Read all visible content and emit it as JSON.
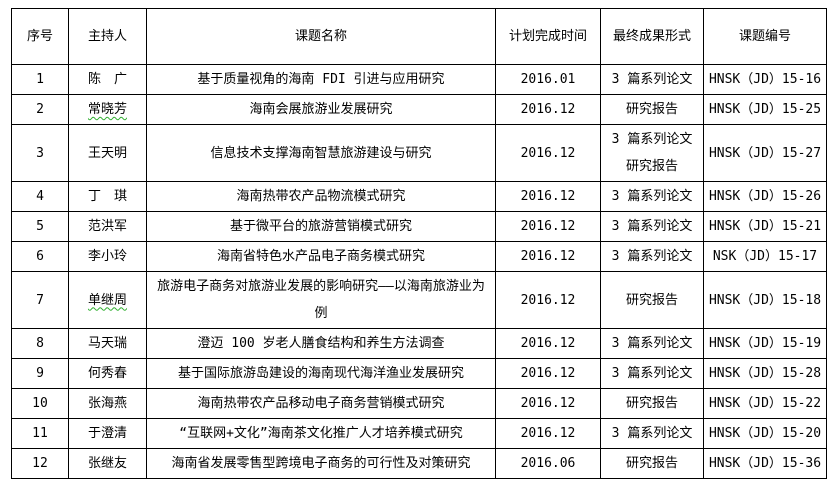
{
  "colors": {
    "table_border": "#000000",
    "text": "#000000",
    "spellcheck_underline": "#2fae2f",
    "background": "#ffffff"
  },
  "table": {
    "headers": [
      "序号",
      "主持人",
      "课题名称",
      "计划完成时间",
      "最终成果形式",
      "课题编号"
    ],
    "rows": [
      {
        "no": "1",
        "host": "陈　广",
        "title": "基于质量视角的海南 FDI 引进与应用研究",
        "date": "2016.01",
        "result": "3 篇系列论文",
        "code": "HNSK（JD）15-16"
      },
      {
        "no": "2",
        "host": "常晓芳",
        "squiggle": true,
        "title": "海南会展旅游业发展研究",
        "date": "2016.12",
        "result": "研究报告",
        "code": "HNSK（JD）15-25"
      },
      {
        "no": "3",
        "host": "王天明",
        "title": "信息技术支撑海南智慧旅游建设与研究",
        "date": "2016.12",
        "result": "3 篇系列论文\n研究报告",
        "code": "HNSK（JD）15-27"
      },
      {
        "no": "4",
        "host": "丁　琪",
        "title": "海南热带农产品物流模式研究",
        "date": "2016.12",
        "result": "3 篇系列论文",
        "code": "HNSK（JD）15-26"
      },
      {
        "no": "5",
        "host": "范洪军",
        "title": "基于微平台的旅游营销模式研究",
        "date": "2016.12",
        "result": "3 篇系列论文",
        "code": "HNSK（JD）15-21"
      },
      {
        "no": "6",
        "host": "李小玲",
        "title": "海南省特色水产品电子商务模式研究",
        "date": "2016.12",
        "result": "3 篇系列论文",
        "code": "NSK（JD）15-17"
      },
      {
        "no": "7",
        "host": "单继周",
        "squiggle": true,
        "title": "旅游电子商务对旅游业发展的影响研究——以海南旅游业为例",
        "date": "2016.12",
        "result": "研究报告",
        "code": "HNSK（JD）15-18"
      },
      {
        "no": "8",
        "host": "马天瑞",
        "title": "澄迈 100 岁老人膳食结构和养生方法调查",
        "date": "2016.12",
        "result": "3 篇系列论文",
        "code": "HNSK（JD）15-19"
      },
      {
        "no": "9",
        "host": "何秀春",
        "title": "基于国际旅游岛建设的海南现代海洋渔业发展研究",
        "date": "2016.12",
        "result": "3 篇系列论文",
        "code": "HNSK（JD）15-28"
      },
      {
        "no": "10",
        "host": "张海燕",
        "title": "海南热带农产品移动电子商务营销模式研究",
        "date": "2016.12",
        "result": "研究报告",
        "code": "HNSK（JD）15-22"
      },
      {
        "no": "11",
        "host": "于澄清",
        "title": "“互联网+文化”海南茶文化推广人才培养模式研究",
        "date": "2016.12",
        "result": "3 篇系列论文",
        "code": "HNSK（JD）15-20"
      },
      {
        "no": "12",
        "host": "张继友",
        "title": "海南省发展零售型跨境电子商务的可行性及对策研究",
        "date": "2016.06",
        "result": "研究报告",
        "code": "HNSK（JD）15-36"
      }
    ]
  }
}
